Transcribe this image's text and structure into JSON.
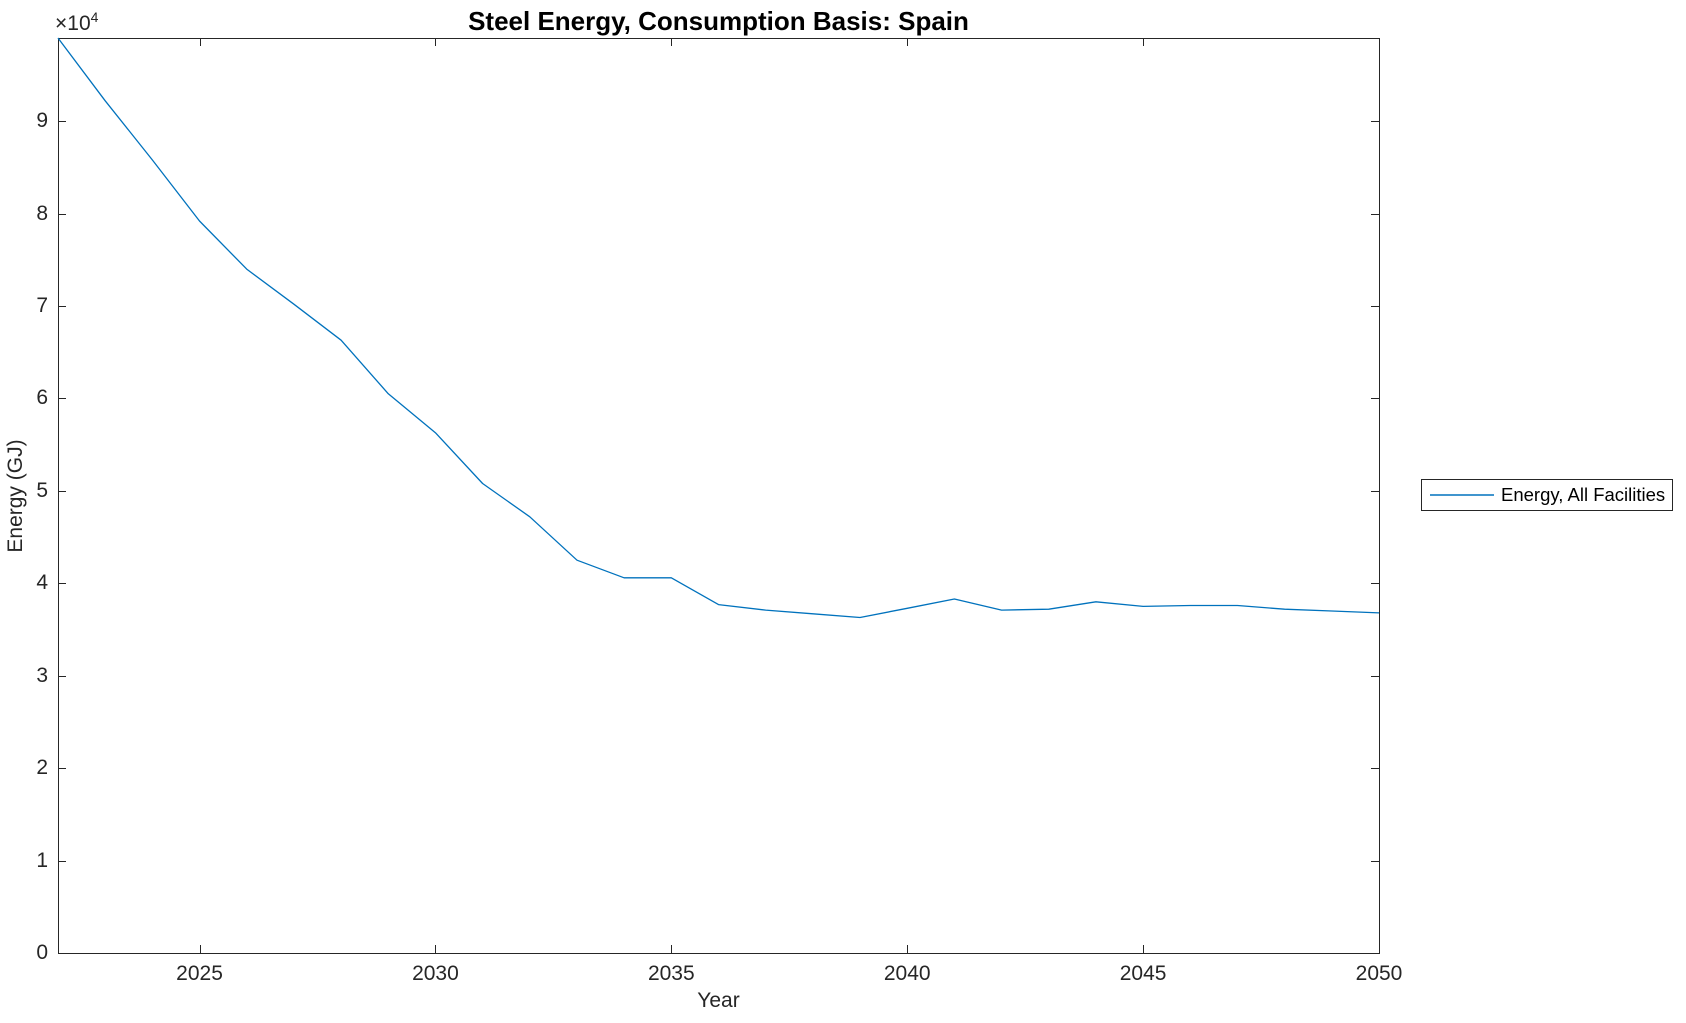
{
  "window": {
    "background": "#ffffff"
  },
  "axes": {
    "offset_base": "×10",
    "offset_exponent": "4"
  },
  "legend": {
    "position": "right-outside",
    "entries": [
      {
        "label": "Energy, All Facilities",
        "color": "#0072BD"
      }
    ]
  },
  "colors": {
    "line": "#0072BD",
    "axis": "#262626",
    "title": "#000000",
    "background": "#ffffff"
  },
  "chart_data": {
    "type": "line",
    "title": "Steel Energy, Consumption Basis: Spain",
    "xlabel": "Year",
    "ylabel": "Energy (GJ)",
    "grid": false,
    "box": true,
    "xlim": [
      2022,
      2050
    ],
    "ylim": [
      0,
      99000
    ],
    "xticks": [
      2025,
      2030,
      2035,
      2040,
      2045,
      2050
    ],
    "xticklabels": [
      "2025",
      "2030",
      "2035",
      "2040",
      "2045",
      "2050"
    ],
    "yticks": [
      0,
      10000,
      20000,
      30000,
      40000,
      50000,
      60000,
      70000,
      80000,
      90000
    ],
    "yticklabels": [
      "0",
      "1",
      "2",
      "3",
      "4",
      "5",
      "6",
      "7",
      "8",
      "9"
    ],
    "y_offset_text": "×10⁴",
    "x": [
      2022,
      2023,
      2024,
      2025,
      2026,
      2027,
      2028,
      2029,
      2030,
      2031,
      2032,
      2033,
      2034,
      2035,
      2036,
      2037,
      2038,
      2039,
      2040,
      2041,
      2042,
      2043,
      2044,
      2045,
      2046,
      2047,
      2048,
      2049,
      2050
    ],
    "series": [
      {
        "name": "Energy, All Facilities",
        "color": "#0072BD",
        "values": [
          99000,
          92200,
          85800,
          79200,
          74000,
          70200,
          66300,
          60500,
          56300,
          50800,
          47200,
          42500,
          40600,
          40600,
          37700,
          37100,
          36700,
          36300,
          37300,
          38300,
          37100,
          37200,
          38000,
          37500,
          37600,
          37600,
          37200,
          37000,
          36800
        ]
      }
    ]
  }
}
